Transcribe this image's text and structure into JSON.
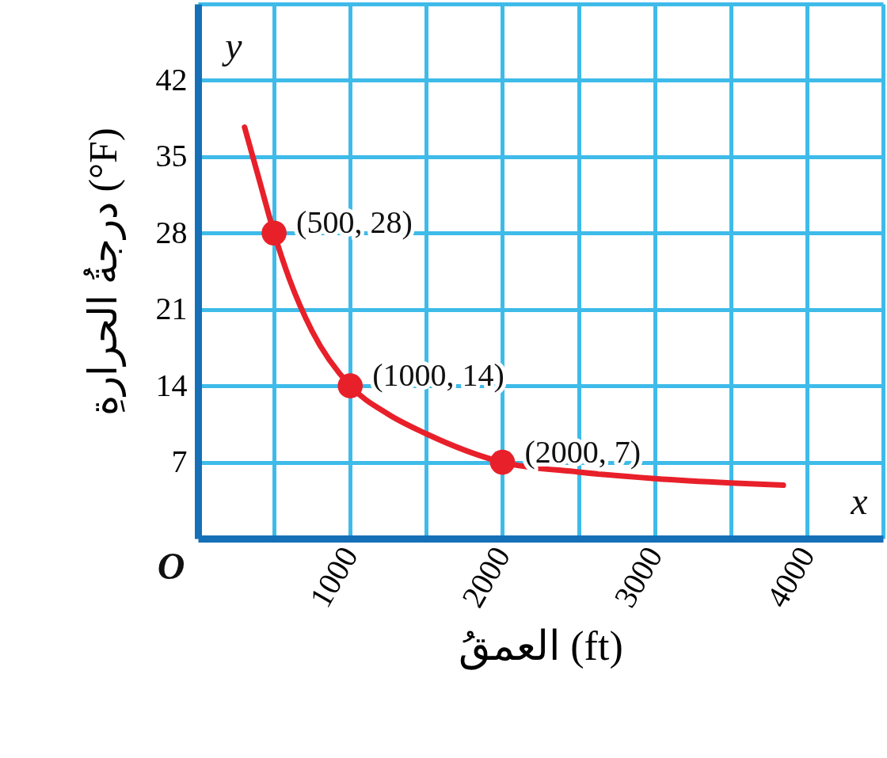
{
  "chart_data": {
    "type": "line",
    "xlabel": "العمقُ (ft)",
    "ylabel": "درجةُ الحرارةِ (°F)",
    "xlim": [
      0,
      4500
    ],
    "ylim": [
      0,
      49
    ],
    "xticks": [
      {
        "value": 500,
        "label": null
      },
      1000,
      {
        "value": 1500,
        "label": null
      },
      2000,
      {
        "value": 2500,
        "label": null
      },
      3000,
      {
        "value": 3500,
        "label": null
      },
      4000,
      {
        "value": 4500,
        "label": null
      }
    ],
    "yticks": [
      7,
      14,
      21,
      28,
      35,
      42,
      {
        "value": 49,
        "label": null
      }
    ],
    "grid": true,
    "series": [
      {
        "color": "#e8202a",
        "marker": "none",
        "x": [
          306,
          400,
          500,
          600,
          750,
          1000,
          1250,
          1500,
          2000,
          2500,
          3000,
          3500,
          3845
        ],
        "values": [
          37.7,
          33,
          28,
          23.8,
          19,
          14,
          11.4,
          9.6,
          7,
          6.1,
          5.5,
          5.1,
          4.9
        ]
      },
      {
        "type": "scatter",
        "color": "#e8202a",
        "marker": "circle",
        "x": [
          500,
          1000,
          2000
        ],
        "values": [
          28,
          14,
          7
        ]
      }
    ],
    "annotations": [
      {
        "text": "(500, 28)",
        "x": 500,
        "y": 28
      },
      {
        "text": "(1000, 14)",
        "x": 1000,
        "y": 14
      },
      {
        "text": "(2000, 7)",
        "x": 2000,
        "y": 7
      },
      "x",
      "y",
      "O"
    ]
  }
}
